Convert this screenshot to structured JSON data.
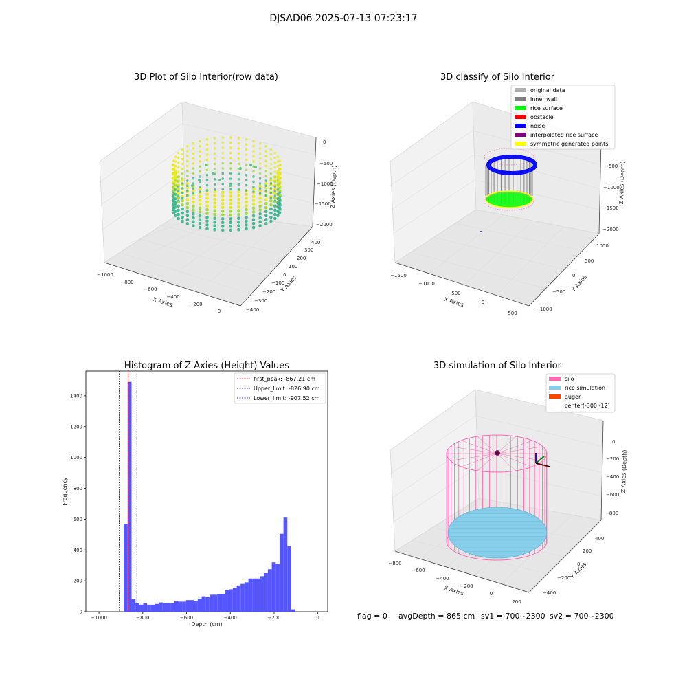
{
  "suptitle": "DJSAD06 2025-07-13 07:23:17",
  "status": {
    "flag": "flag = 0",
    "avg_depth": "avgDepth = 865 cm",
    "sv1": "sv1 = 700~2300",
    "sv2": "sv2 = 700~2300"
  },
  "colors": {
    "viridis_green": "#3db58f",
    "viridis_yellow": "#e8e81e",
    "inner_wall": "#808080",
    "rice_surface": "#00ff00",
    "obstacle": "#ff0000",
    "noise": "#0000ff",
    "interpolated": "#800080",
    "symmetric": "#ffff00",
    "original": "#b0b0b0",
    "silo": "#ff69b4",
    "rice_sim": "#87ceeb",
    "auger": "#ff4500",
    "hist_bar": "#4d4dff"
  },
  "chart_data": [
    {
      "type": "scatter",
      "title": "3D Plot of Silo Interior(row data)",
      "xlabel": "X Axies",
      "ylabel": "Y Axies",
      "zlabel": "Z Axies (Depth)",
      "x_ticks": [
        "−1000",
        "−800",
        "−600",
        "−400",
        "−200",
        "0"
      ],
      "y_ticks": [
        "−400",
        "−300",
        "−200",
        "−100",
        "0",
        "100",
        "200",
        "300",
        "400"
      ],
      "z_ticks": [
        "0",
        "−500",
        "−1000",
        "−1500",
        "−2000"
      ],
      "xlim": [
        -1000,
        0
      ],
      "ylim": [
        -400,
        400
      ],
      "zlim": [
        -2000,
        0
      ]
    },
    {
      "type": "scatter",
      "title": "3D classify of Silo Interior",
      "xlabel": "X Axies",
      "ylabel": "Y Axies",
      "zlabel": "Z Axies (Depth)",
      "x_ticks": [
        "−1500",
        "−1000",
        "−500",
        "0",
        "500"
      ],
      "y_ticks": [
        "−1000",
        "−500",
        "0",
        "500",
        "1000"
      ],
      "z_ticks": [
        "−500",
        "−1000",
        "−1500",
        "−2000"
      ],
      "legend": [
        "original data",
        "inner wall",
        "rice surface",
        "obstacle",
        "noise",
        "interpolated rice surface",
        "symmetric generated points"
      ],
      "legend_position": "top-right"
    },
    {
      "type": "bar",
      "title": "Histogram of Z-Axies (Height) Values",
      "xlabel": "Depth (cm)",
      "ylabel": "Frequency",
      "x_ticks": [
        "−1000",
        "−800",
        "−600",
        "−400",
        "−200",
        "0"
      ],
      "y_ticks": [
        "0",
        "200",
        "400",
        "600",
        "800",
        "1000",
        "1200",
        "1400"
      ],
      "xlim": [
        -1060,
        45
      ],
      "ylim": [
        0,
        1560
      ],
      "bin_width": 17.8,
      "bin_start": -887,
      "values": [
        570,
        1490,
        80,
        55,
        45,
        55,
        45,
        45,
        50,
        60,
        55,
        55,
        55,
        70,
        65,
        65,
        75,
        75,
        70,
        85,
        100,
        95,
        110,
        110,
        115,
        115,
        140,
        145,
        155,
        170,
        180,
        190,
        215,
        215,
        215,
        230,
        250,
        275,
        320,
        310,
        505,
        610,
        425,
        15
      ],
      "vlines": [
        {
          "label": "first_peak: -867.21 cm",
          "x": -867.21,
          "color": "#ff0000"
        },
        {
          "label": "Upper_limit: -826.90 cm",
          "x": -826.9,
          "color": "#0000cc"
        },
        {
          "label": "Lower_limit: -907.52 cm",
          "x": -907.52,
          "color": "#0000cc"
        }
      ],
      "legend_position": "top-right"
    },
    {
      "type": "scatter",
      "title": "3D simulation of Silo Interior",
      "xlabel": "X Axies",
      "ylabel": "Y Axies",
      "zlabel": "Z Axies (Depth)",
      "x_ticks": [
        "−800",
        "−600",
        "−400",
        "−200",
        "0",
        "200"
      ],
      "y_ticks": [
        "−400",
        "−200",
        "0",
        "200",
        "400"
      ],
      "z_ticks": [
        "0",
        "−200",
        "−400",
        "−600",
        "−800"
      ],
      "legend": [
        "silo",
        "rice simulation",
        "auger",
        "center(-300,-12)"
      ],
      "legend_position": "top-right"
    }
  ]
}
